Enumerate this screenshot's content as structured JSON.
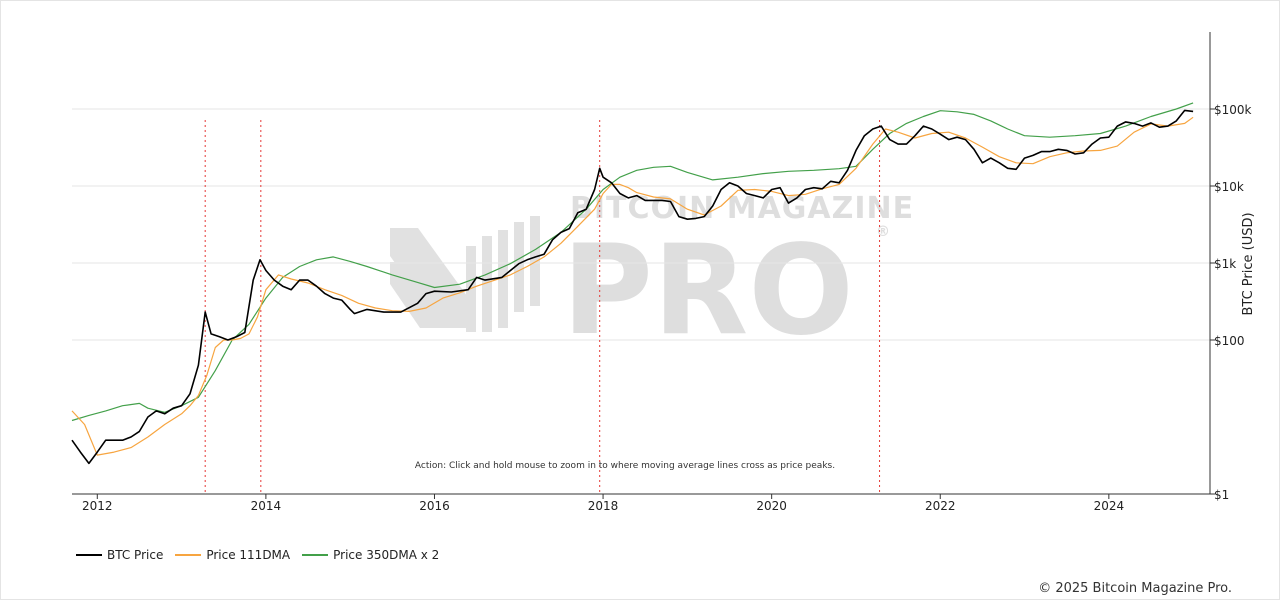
{
  "chart_data": {
    "type": "line",
    "title": "",
    "xlabel": "",
    "ylabel": "BTC Price (USD)",
    "yscale": "log",
    "ylim": [
      1,
      900000
    ],
    "xlim": [
      2011.7,
      2025.2
    ],
    "x_ticks": [
      2012,
      2014,
      2016,
      2018,
      2020,
      2022,
      2024
    ],
    "x_tick_labels": [
      "2012",
      "2014",
      "2016",
      "2018",
      "2020",
      "2022",
      "2024"
    ],
    "y_ticks": [
      1,
      100,
      1000,
      10000,
      100000
    ],
    "y_tick_labels": [
      "$1",
      "$100",
      "$1k",
      "$10k",
      "$100k"
    ],
    "grid": true,
    "legend_position": "bottom-left",
    "series": [
      {
        "name": "BTC Price",
        "color": "#000000",
        "x": [
          2011.7,
          2011.8,
          2011.9,
          2012.0,
          2012.1,
          2012.2,
          2012.3,
          2012.4,
          2012.5,
          2012.6,
          2012.7,
          2012.8,
          2012.9,
          2013.0,
          2013.1,
          2013.2,
          2013.28,
          2013.35,
          2013.45,
          2013.55,
          2013.65,
          2013.75,
          2013.85,
          2013.93,
          2014.0,
          2014.1,
          2014.2,
          2014.3,
          2014.4,
          2014.5,
          2014.6,
          2014.7,
          2014.8,
          2014.9,
          2015.0,
          2015.05,
          2015.2,
          2015.4,
          2015.6,
          2015.8,
          2015.9,
          2016.0,
          2016.2,
          2016.4,
          2016.5,
          2016.6,
          2016.8,
          2017.0,
          2017.1,
          2017.2,
          2017.3,
          2017.4,
          2017.5,
          2017.6,
          2017.7,
          2017.8,
          2017.9,
          2017.96,
          2018.0,
          2018.1,
          2018.2,
          2018.3,
          2018.4,
          2018.5,
          2018.6,
          2018.7,
          2018.8,
          2018.9,
          2019.0,
          2019.1,
          2019.2,
          2019.3,
          2019.4,
          2019.5,
          2019.6,
          2019.7,
          2019.8,
          2019.9,
          2020.0,
          2020.1,
          2020.2,
          2020.3,
          2020.4,
          2020.5,
          2020.6,
          2020.7,
          2020.8,
          2020.9,
          2021.0,
          2021.1,
          2021.2,
          2021.3,
          2021.4,
          2021.5,
          2021.6,
          2021.7,
          2021.8,
          2021.9,
          2022.0,
          2022.1,
          2022.2,
          2022.3,
          2022.4,
          2022.5,
          2022.6,
          2022.7,
          2022.8,
          2022.9,
          2023.0,
          2023.1,
          2023.2,
          2023.3,
          2023.4,
          2023.5,
          2023.6,
          2023.7,
          2023.8,
          2023.9,
          2024.0,
          2024.1,
          2024.2,
          2024.3,
          2024.4,
          2024.5,
          2024.6,
          2024.7,
          2024.8,
          2024.9,
          2025.0
        ],
        "values": [
          5,
          3.5,
          2.5,
          3.5,
          5,
          5,
          5,
          5.5,
          6.5,
          10,
          12,
          11,
          13,
          14,
          20,
          47,
          230,
          120,
          110,
          100,
          110,
          125,
          600,
          1100,
          800,
          600,
          500,
          450,
          600,
          600,
          500,
          400,
          350,
          330,
          250,
          220,
          250,
          230,
          230,
          300,
          400,
          430,
          420,
          450,
          650,
          600,
          650,
          980,
          1100,
          1200,
          1300,
          2000,
          2500,
          2800,
          4500,
          5000,
          9000,
          17000,
          13000,
          11000,
          8000,
          7000,
          7500,
          6500,
          6500,
          6500,
          6300,
          4000,
          3700,
          3800,
          4000,
          5500,
          9000,
          11000,
          10000,
          8000,
          7500,
          7000,
          9000,
          9500,
          6000,
          7000,
          9000,
          9500,
          9200,
          11500,
          11000,
          16000,
          29000,
          45000,
          55000,
          60000,
          40000,
          35000,
          35000,
          45000,
          60000,
          55000,
          47000,
          40000,
          43000,
          40000,
          30000,
          20000,
          23000,
          20000,
          17000,
          16500,
          23000,
          25000,
          28000,
          28000,
          30000,
          29000,
          26000,
          27000,
          35000,
          42000,
          43000,
          60000,
          68000,
          65000,
          60000,
          66000,
          58000,
          60000,
          70000,
          96000,
          93000
        ]
      },
      {
        "name": "Price 111DMA",
        "color": "#f7a540",
        "x": [
          2011.7,
          2011.85,
          2012.0,
          2012.2,
          2012.4,
          2012.6,
          2012.8,
          2013.0,
          2013.1,
          2013.2,
          2013.3,
          2013.4,
          2013.5,
          2013.6,
          2013.7,
          2013.8,
          2013.9,
          2014.0,
          2014.15,
          2014.3,
          2014.5,
          2014.7,
          2014.9,
          2015.1,
          2015.3,
          2015.5,
          2015.7,
          2015.9,
          2016.1,
          2016.3,
          2016.5,
          2016.7,
          2016.9,
          2017.1,
          2017.3,
          2017.5,
          2017.7,
          2017.9,
          2018.0,
          2018.1,
          2018.2,
          2018.3,
          2018.4,
          2018.6,
          2018.8,
          2019.0,
          2019.2,
          2019.4,
          2019.6,
          2019.8,
          2020.0,
          2020.2,
          2020.4,
          2020.6,
          2020.8,
          2021.0,
          2021.2,
          2021.35,
          2021.5,
          2021.7,
          2021.9,
          2022.1,
          2022.3,
          2022.5,
          2022.7,
          2022.9,
          2023.1,
          2023.3,
          2023.5,
          2023.7,
          2023.9,
          2024.1,
          2024.3,
          2024.5,
          2024.7,
          2024.9,
          2025.0
        ],
        "values": [
          12,
          8,
          3.2,
          3.5,
          4,
          5.5,
          8,
          11,
          14,
          19,
          35,
          80,
          100,
          100,
          105,
          120,
          200,
          450,
          700,
          620,
          550,
          450,
          380,
          300,
          260,
          240,
          235,
          260,
          350,
          410,
          500,
          590,
          700,
          900,
          1200,
          1800,
          3000,
          5000,
          8000,
          10500,
          10500,
          9500,
          8200,
          7200,
          6800,
          5000,
          4200,
          5500,
          8800,
          9000,
          8500,
          7500,
          7800,
          9200,
          10500,
          17000,
          35000,
          55000,
          50000,
          42000,
          48000,
          50000,
          42000,
          32000,
          24000,
          20000,
          19500,
          24000,
          27000,
          28500,
          29000,
          33000,
          50000,
          64000,
          60000,
          65000,
          78000
        ]
      },
      {
        "name": "Price 350DMA x 2",
        "color": "#43a04a",
        "x": [
          2011.7,
          2011.9,
          2012.1,
          2012.3,
          2012.5,
          2012.6,
          2012.8,
          2013.0,
          2013.2,
          2013.4,
          2013.6,
          2013.8,
          2014.0,
          2014.2,
          2014.4,
          2014.6,
          2014.8,
          2015.0,
          2015.2,
          2015.5,
          2015.8,
          2016.0,
          2016.3,
          2016.6,
          2016.9,
          2017.2,
          2017.5,
          2017.8,
          2018.0,
          2018.2,
          2018.4,
          2018.6,
          2018.8,
          2019.0,
          2019.3,
          2019.6,
          2019.9,
          2020.2,
          2020.5,
          2020.8,
          2021.0,
          2021.2,
          2021.4,
          2021.6,
          2021.8,
          2022.0,
          2022.2,
          2022.4,
          2022.6,
          2022.8,
          2023.0,
          2023.3,
          2023.6,
          2023.9,
          2024.2,
          2024.5,
          2024.8,
          2025.0
        ],
        "values": [
          9,
          10.5,
          12,
          14,
          15,
          13,
          11.5,
          14,
          18,
          40,
          100,
          160,
          350,
          650,
          900,
          1100,
          1200,
          1050,
          900,
          700,
          560,
          480,
          530,
          700,
          980,
          1500,
          2500,
          5000,
          9000,
          13000,
          16000,
          17500,
          18000,
          15000,
          12000,
          13000,
          14500,
          15500,
          16000,
          16800,
          18000,
          30000,
          48000,
          65000,
          80000,
          95000,
          92000,
          85000,
          70000,
          55000,
          45000,
          43000,
          45000,
          48000,
          60000,
          80000,
          100000,
          120000
        ]
      }
    ],
    "peak_markers": [
      2013.28,
      2013.94,
      2017.96,
      2021.28
    ],
    "annotation": "Action: Click and hold mouse to zoom in to where moving average lines cross as price peaks."
  },
  "watermark": {
    "line1": "BITCOIN MAGAZINE",
    "line2": "PRO",
    "registered": "®"
  },
  "legend": {
    "items": [
      {
        "label": "BTC Price",
        "color": "#000000"
      },
      {
        "label": "Price 111DMA",
        "color": "#f7a540"
      },
      {
        "label": "Price 350DMA x 2",
        "color": "#43a04a"
      }
    ]
  },
  "footer": {
    "copyright": "© 2025 Bitcoin Magazine Pro."
  }
}
